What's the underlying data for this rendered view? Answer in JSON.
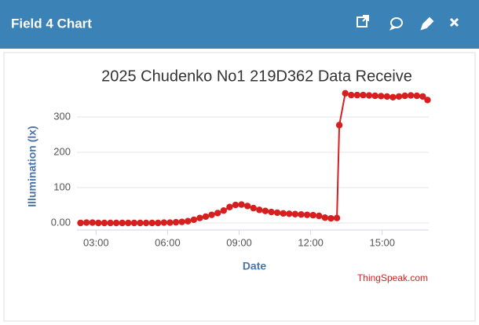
{
  "header": {
    "title": "Field 4 Chart"
  },
  "chart_data": {
    "type": "line",
    "title": "2025 Chudenko No1 219D362 Data Receive",
    "xlabel": "Date",
    "ylabel": "Illumination (lx)",
    "credit": "ThingSpeak.com",
    "color": "#d62020",
    "x": [
      2.35,
      2.6,
      2.85,
      3.1,
      3.35,
      3.6,
      3.85,
      4.1,
      4.35,
      4.6,
      4.85,
      5.1,
      5.35,
      5.6,
      5.85,
      6.1,
      6.35,
      6.6,
      6.85,
      7.1,
      7.35,
      7.6,
      7.85,
      8.1,
      8.35,
      8.6,
      8.85,
      9.1,
      9.35,
      9.6,
      9.85,
      10.1,
      10.35,
      10.6,
      10.85,
      11.1,
      11.35,
      11.6,
      11.85,
      12.1,
      12.35,
      12.6,
      12.85,
      13.1,
      13.2,
      13.45,
      13.7,
      13.95,
      14.2,
      14.45,
      14.7,
      14.95,
      15.2,
      15.45,
      15.7,
      15.95,
      16.2,
      16.45,
      16.7,
      16.9
    ],
    "values": [
      0,
      1,
      1,
      0,
      0,
      0,
      0,
      0,
      0,
      0,
      0,
      0,
      0,
      0,
      1,
      1,
      2,
      3,
      5,
      9,
      14,
      18,
      23,
      28,
      35,
      45,
      51,
      52,
      48,
      42,
      37,
      34,
      31,
      29,
      27,
      26,
      25,
      24,
      23,
      22,
      20,
      15,
      13,
      14,
      277,
      367,
      362,
      362,
      362,
      361,
      360,
      359,
      358,
      356,
      358,
      360,
      361,
      360,
      358,
      348
    ],
    "xlim": [
      2.2,
      16.95
    ],
    "xticks": [
      {
        "value": 3,
        "label": "03:00"
      },
      {
        "value": 6,
        "label": "06:00"
      },
      {
        "value": 9,
        "label": "09:00"
      },
      {
        "value": 12,
        "label": "12:00"
      },
      {
        "value": 15,
        "label": "15:00"
      }
    ],
    "ylim": [
      -20,
      400
    ],
    "yticks": [
      {
        "value": 0,
        "label": "0.00"
      },
      100,
      200,
      300
    ],
    "grid": true
  }
}
